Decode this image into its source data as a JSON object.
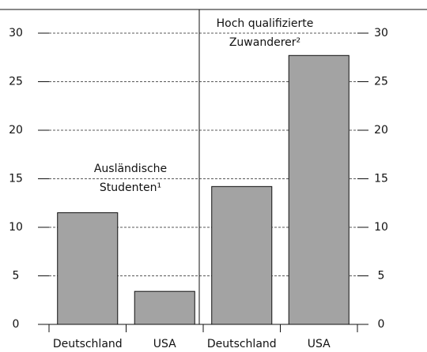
{
  "chart_data": {
    "type": "bar",
    "categories": [
      "Deutschland",
      "USA",
      "Deutschland",
      "USA"
    ],
    "values": [
      11.5,
      3.4,
      14.2,
      27.7
    ],
    "color": "#a3a3a3",
    "ylim": [
      0,
      30
    ],
    "yticks": [
      0,
      5,
      10,
      15,
      20,
      25,
      30
    ],
    "grid": true,
    "annotations": [
      "Ausländische",
      "Studenten¹",
      "Hoch qualifizierte",
      "Zuwanderer²"
    ]
  }
}
